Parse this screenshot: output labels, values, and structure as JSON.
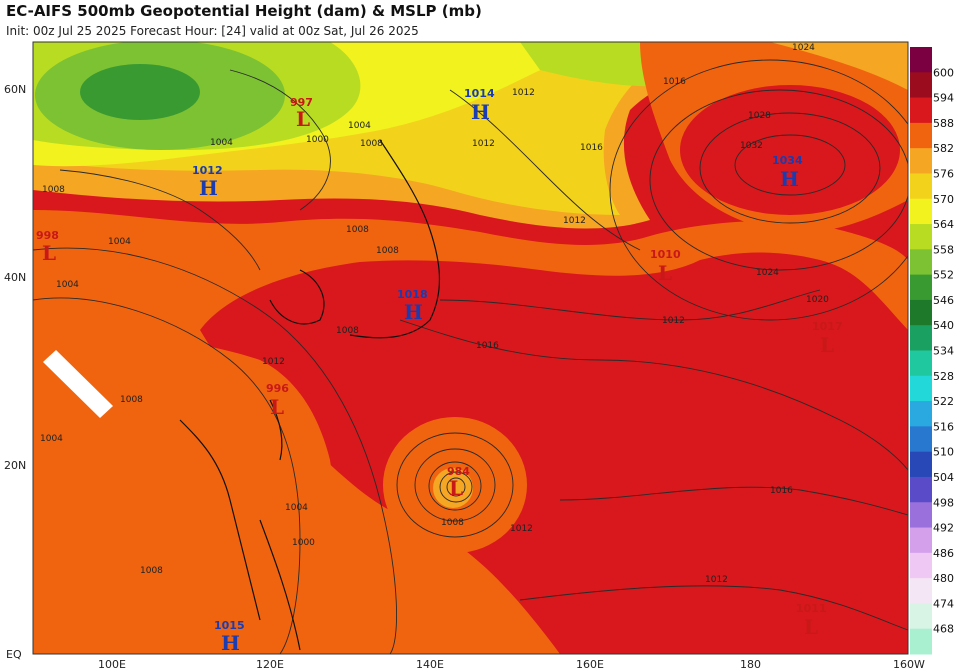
{
  "title": "EC-AIFS 500mb Geopotential Height (dam) & MSLP (mb)",
  "subtitle": "Init: 00z Jul 25 2025   Forecast Hour: [24]   valid at 00z Sat, Jul 26 2025",
  "lat_labels": [
    "60N",
    "40N",
    "20N",
    "EQ"
  ],
  "lon_labels": [
    "100E",
    "120E",
    "140E",
    "160E",
    "180",
    "160W"
  ],
  "colorbar": {
    "labels": [
      "600",
      "594",
      "588",
      "582",
      "576",
      "570",
      "564",
      "558",
      "552",
      "546",
      "540",
      "534",
      "528",
      "522",
      "516",
      "510",
      "504",
      "498",
      "492",
      "486",
      "480",
      "474",
      "468"
    ],
    "colors": [
      "#7a0042",
      "#9b0d1e",
      "#d8181c",
      "#f06410",
      "#f5a623",
      "#f3d21c",
      "#f2f21e",
      "#b8dc22",
      "#7cc232",
      "#3a9a32",
      "#1e7a2a",
      "#1aa060",
      "#20c8a0",
      "#22d8d8",
      "#2aa8e0",
      "#2878d0",
      "#2848b8",
      "#5a4cc8",
      "#9a70dc",
      "#d4a0ec",
      "#f0c8f4",
      "#f4e6f4",
      "#d8f4e4",
      "#a8f0d0"
    ]
  },
  "pressure_systems": [
    {
      "type": "L",
      "value": "997",
      "color": "#c81818"
    },
    {
      "type": "H",
      "value": "1014",
      "color": "#1a3cb0"
    },
    {
      "type": "H",
      "value": "1012",
      "color": "#1a3cb0"
    },
    {
      "type": "L",
      "value": "998",
      "color": "#c81818"
    },
    {
      "type": "H",
      "value": "1034",
      "color": "#1a3cb0"
    },
    {
      "type": "L",
      "value": "1010",
      "color": "#c81818"
    },
    {
      "type": "H",
      "value": "1018",
      "color": "#1a3cb0"
    },
    {
      "type": "L",
      "value": "1017",
      "color": "#c81818"
    },
    {
      "type": "L",
      "value": "996",
      "color": "#c81818"
    },
    {
      "type": "L",
      "value": "984",
      "color": "#c81818"
    },
    {
      "type": "H",
      "value": "1015",
      "color": "#1a3cb0"
    },
    {
      "type": "L",
      "value": "1011",
      "color": "#c81818"
    }
  ],
  "isobar_labels": [
    "1004",
    "1000",
    "1008",
    "1004",
    "1012",
    "1012",
    "1016",
    "1024",
    "1028",
    "1032",
    "1012",
    "1008",
    "1004",
    "1008",
    "1008",
    "1004",
    "1008",
    "1024",
    "1020",
    "1012",
    "1016",
    "1012",
    "1008",
    "1016",
    "1004",
    "1000",
    "1004",
    "1008",
    "1012",
    "1016",
    "1012",
    "1008"
  ]
}
